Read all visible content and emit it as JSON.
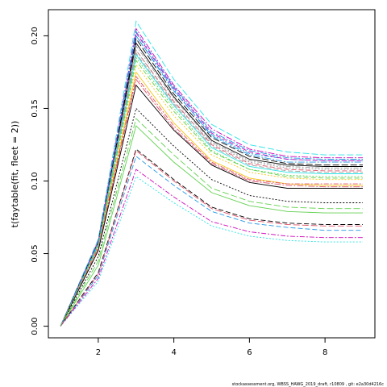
{
  "footer_text": "stockassessment.org, WBSS_HAWG_2019_draft, r10809 , git: e2a30d4216c",
  "chart_data": {
    "type": "line",
    "ylabel": "t(faytable(fit, fleet = 2))",
    "xlabel": "",
    "title": "",
    "xlim": [
      0.68,
      9.32
    ],
    "ylim": [
      -0.008,
      0.218
    ],
    "x_ticks": [
      2,
      4,
      6,
      8
    ],
    "y_ticks": [
      0.0,
      0.05,
      0.1,
      0.15,
      0.2
    ],
    "y_tick_labels": [
      "0.00",
      "0.05",
      "0.10",
      "0.15",
      "0.20"
    ],
    "x": [
      1,
      2,
      3,
      4,
      5,
      6,
      7,
      8,
      9
    ],
    "series": [
      {
        "color": "#000000",
        "dash": "",
        "values": [
          0,
          0.058,
          0.195,
          0.158,
          0.128,
          0.115,
          0.111,
          0.11,
          0.11
        ]
      },
      {
        "color": "#DF536B",
        "dash": "6,3",
        "values": [
          0,
          0.057,
          0.19,
          0.155,
          0.125,
          0.112,
          0.108,
          0.107,
          0.107
        ]
      },
      {
        "color": "#61D04F",
        "dash": "2,2",
        "values": [
          0,
          0.056,
          0.185,
          0.15,
          0.121,
          0.108,
          0.104,
          0.103,
          0.103
        ]
      },
      {
        "color": "#2297E6",
        "dash": "6,2,2,2",
        "values": [
          0,
          0.058,
          0.2,
          0.162,
          0.132,
          0.119,
          0.115,
          0.114,
          0.114
        ]
      },
      {
        "color": "#28E2E5",
        "dash": "8,3",
        "values": [
          0,
          0.06,
          0.21,
          0.17,
          0.139,
          0.125,
          0.12,
          0.118,
          0.118
        ]
      },
      {
        "color": "#CD0BBC",
        "dash": "8,2,2,2",
        "values": [
          0,
          0.059,
          0.205,
          0.166,
          0.136,
          0.122,
          0.117,
          0.116,
          0.116
        ]
      },
      {
        "color": "#F5C710",
        "dash": "",
        "values": [
          0,
          0.055,
          0.175,
          0.14,
          0.114,
          0.102,
          0.098,
          0.097,
          0.097
        ]
      },
      {
        "color": "#9E9E9E",
        "dash": "6,3",
        "values": [
          0,
          0.056,
          0.188,
          0.153,
          0.124,
          0.111,
          0.107,
          0.106,
          0.106
        ]
      },
      {
        "color": "#000000",
        "dash": "2,2",
        "values": [
          0,
          0.048,
          0.15,
          0.124,
          0.101,
          0.09,
          0.086,
          0.085,
          0.085
        ]
      },
      {
        "color": "#DF536B",
        "dash": "6,2,2,2",
        "values": [
          0,
          0.054,
          0.172,
          0.138,
          0.113,
          0.101,
          0.098,
          0.098,
          0.098
        ]
      },
      {
        "color": "#61D04F",
        "dash": "8,3",
        "values": [
          0,
          0.045,
          0.143,
          0.118,
          0.095,
          0.086,
          0.082,
          0.081,
          0.081
        ]
      },
      {
        "color": "#2297E6",
        "dash": "8,2,2,2",
        "values": [
          0,
          0.057,
          0.2,
          0.163,
          0.131,
          0.118,
          0.113,
          0.113,
          0.113
        ]
      },
      {
        "color": "#28E2E5",
        "dash": "",
        "values": [
          0,
          0.056,
          0.187,
          0.152,
          0.123,
          0.11,
          0.106,
          0.105,
          0.105
        ]
      },
      {
        "color": "#CD0BBC",
        "dash": "6,3",
        "values": [
          0,
          0.058,
          0.202,
          0.164,
          0.133,
          0.12,
          0.115,
          0.114,
          0.114
        ]
      },
      {
        "color": "#F5C710",
        "dash": "2,2",
        "values": [
          0,
          0.055,
          0.18,
          0.145,
          0.118,
          0.106,
          0.102,
          0.101,
          0.101
        ]
      },
      {
        "color": "#9E9E9E",
        "dash": "6,2,2,2",
        "values": [
          0,
          0.057,
          0.193,
          0.157,
          0.127,
          0.114,
          0.11,
          0.109,
          0.109
        ]
      },
      {
        "color": "#000000",
        "dash": "8,3",
        "values": [
          0,
          0.058,
          0.198,
          0.16,
          0.13,
          0.117,
          0.112,
          0.111,
          0.111
        ]
      },
      {
        "color": "#DF536B",
        "dash": "8,2,2,2",
        "values": [
          0,
          0.053,
          0.17,
          0.136,
          0.112,
          0.1,
          0.097,
          0.096,
          0.096
        ]
      },
      {
        "color": "#61D04F",
        "dash": "",
        "values": [
          0,
          0.042,
          0.138,
          0.113,
          0.092,
          0.083,
          0.079,
          0.078,
          0.078
        ]
      },
      {
        "color": "#2297E6",
        "dash": "6,3",
        "values": [
          0,
          0.035,
          0.117,
          0.097,
          0.079,
          0.071,
          0.068,
          0.066,
          0.066
        ]
      },
      {
        "color": "#28E2E5",
        "dash": "2,2",
        "values": [
          0,
          0.031,
          0.103,
          0.085,
          0.069,
          0.062,
          0.059,
          0.058,
          0.058
        ]
      },
      {
        "color": "#CD0BBC",
        "dash": "6,2,2,2",
        "values": [
          0,
          0.033,
          0.108,
          0.089,
          0.072,
          0.065,
          0.062,
          0.061,
          0.061
        ]
      },
      {
        "color": "#000000",
        "dash": "6,3",
        "values": [
          0,
          0.037,
          0.122,
          0.101,
          0.082,
          0.074,
          0.071,
          0.07,
          0.07
        ]
      },
      {
        "color": "#DF536B",
        "dash": "8,3",
        "values": [
          0,
          0.036,
          0.121,
          0.1,
          0.081,
          0.073,
          0.07,
          0.069,
          0.069
        ]
      },
      {
        "color": "#000000",
        "dash": "",
        "values": [
          0,
          0.052,
          0.166,
          0.135,
          0.111,
          0.099,
          0.095,
          0.095,
          0.095
        ]
      },
      {
        "color": "#2297E6",
        "dash": "8,2,2,2",
        "values": [
          0,
          0.058,
          0.203,
          0.165,
          0.134,
          0.121,
          0.116,
          0.115,
          0.115
        ]
      },
      {
        "color": "#61D04F",
        "dash": "6,3",
        "values": [
          0,
          0.055,
          0.183,
          0.148,
          0.12,
          0.108,
          0.103,
          0.102,
          0.102
        ]
      },
      {
        "color": "#9E9E9E",
        "dash": "2,2",
        "values": [
          0,
          0.056,
          0.19,
          0.154,
          0.126,
          0.113,
          0.109,
          0.108,
          0.108
        ]
      }
    ]
  }
}
